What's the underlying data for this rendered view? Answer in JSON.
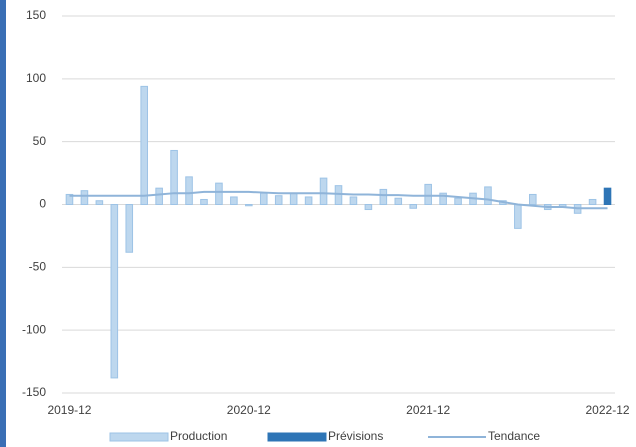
{
  "chart_data": {
    "type": "bar",
    "categories": [
      "2019-12",
      null,
      null,
      null,
      null,
      null,
      null,
      null,
      null,
      null,
      null,
      null,
      "2020-12",
      null,
      null,
      null,
      null,
      null,
      null,
      null,
      null,
      null,
      null,
      null,
      "2021-12",
      null,
      null,
      null,
      null,
      null,
      null,
      null,
      null,
      null,
      null,
      null,
      "2022-12"
    ],
    "series": [
      {
        "name": "Production",
        "color": "#bdd7ee",
        "type": "bar",
        "values": [
          8,
          11,
          3,
          -138,
          -38,
          94,
          13,
          43,
          22,
          4,
          17,
          6,
          -1,
          9,
          7,
          9,
          6,
          21,
          15,
          6,
          -4,
          12,
          5,
          -3,
          16,
          9,
          5,
          9,
          14,
          3,
          -19,
          8,
          -4,
          -2,
          -7,
          4,
          null
        ]
      },
      {
        "name": "Prévisions",
        "color": "#2e75b6",
        "type": "bar",
        "values": [
          null,
          null,
          null,
          null,
          null,
          null,
          null,
          null,
          null,
          null,
          null,
          null,
          null,
          null,
          null,
          null,
          null,
          null,
          null,
          null,
          null,
          null,
          null,
          null,
          null,
          null,
          null,
          null,
          null,
          null,
          null,
          null,
          null,
          null,
          null,
          null,
          13
        ]
      },
      {
        "name": "Tendance",
        "color": "#8fb4d9",
        "type": "line",
        "values": [
          7,
          7,
          7,
          7,
          7,
          7,
          8,
          9,
          9,
          10,
          10,
          10,
          10,
          9.5,
          9,
          9,
          9,
          9,
          8.5,
          8,
          8,
          7.5,
          7.5,
          7,
          7,
          7,
          6,
          5,
          4,
          2,
          0,
          -1,
          -2,
          -2,
          -3,
          -3,
          -3
        ]
      }
    ],
    "ylim": [
      -150,
      150
    ],
    "yticks": [
      -150,
      -100,
      -50,
      0,
      50,
      100,
      150
    ],
    "grid": true,
    "legend": "bottom"
  }
}
